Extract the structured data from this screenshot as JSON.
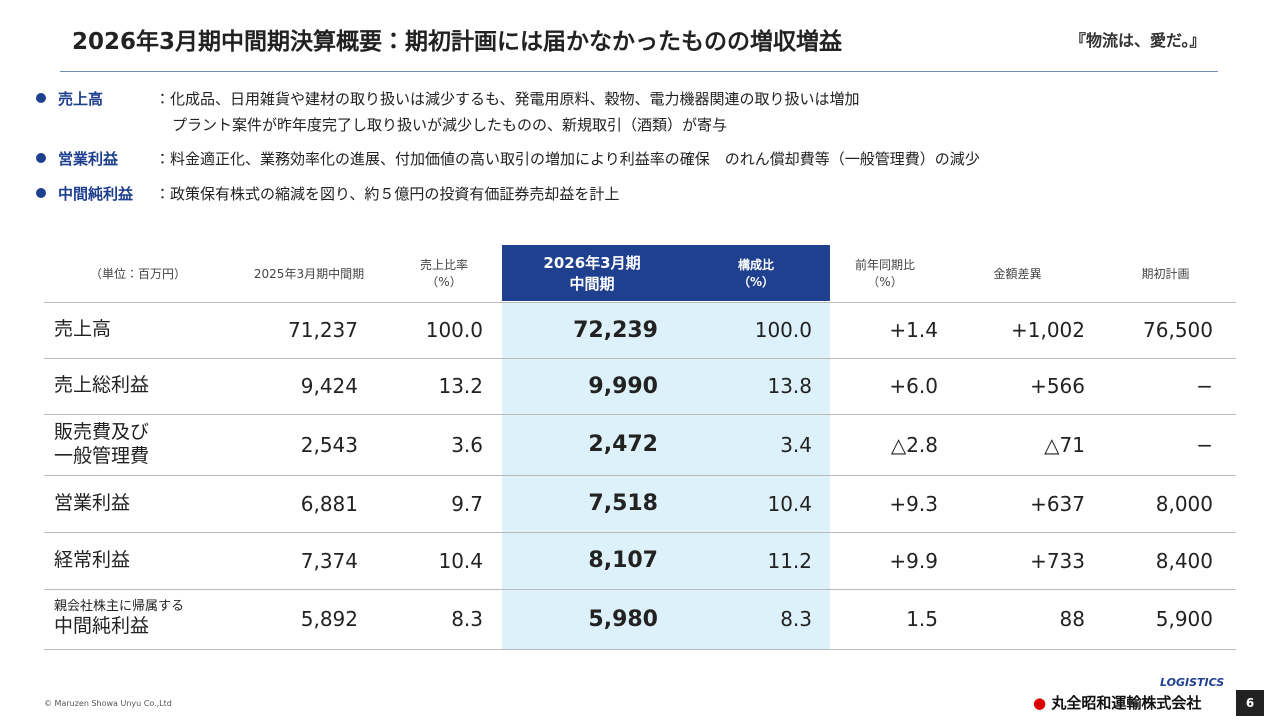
{
  "header": {
    "title": "2026年3月期中間期決算概要：期初計画には届かなかったものの増収増益",
    "slogan": "『物流は、愛だ。』"
  },
  "bullets": [
    {
      "label": "売上高",
      "lines": [
        "：化成品、日用雑貨や建材の取り扱いは減少するも、発電用原料、穀物、電力機器関連の取り扱いは増加",
        "プラント案件が昨年度完了し取り扱いが減少したものの、新規取引（酒類）が寄与"
      ]
    },
    {
      "label": "営業利益",
      "lines": [
        "：料金適正化、業務効率化の進展、付加価値の高い取引の増加により利益率の確保　のれん償却費等（一般管理費）の減少"
      ]
    },
    {
      "label": "中間純利益",
      "lines": [
        "：政策保有株式の縮減を図り、約５億円の投資有価証券売却益を計上"
      ]
    }
  ],
  "table": {
    "columns": [
      [
        "（単位：百万円）"
      ],
      [
        "2025年3月期中間期"
      ],
      [
        "売上比率",
        "（%）"
      ],
      [
        "2026年3月期",
        "中間期"
      ],
      [
        "構成比",
        "（%）"
      ],
      [
        "前年同期比",
        "（%）"
      ],
      [
        "金額差異"
      ],
      [
        "期初計画"
      ]
    ],
    "rows": [
      {
        "label": [
          "売上高"
        ],
        "cells": [
          "71,237",
          "100.0",
          "72,239",
          "100.0",
          "+1.4",
          "+1,002",
          "76,500"
        ]
      },
      {
        "label": [
          "売上総利益"
        ],
        "cells": [
          "9,424",
          "13.2",
          "9,990",
          "13.8",
          "+6.0",
          "+566",
          "−"
        ]
      },
      {
        "label": [
          "販売費及び",
          "一般管理費"
        ],
        "cells": [
          "2,543",
          "3.6",
          "2,472",
          "3.4",
          "△2.8",
          "△71",
          "−"
        ]
      },
      {
        "label": [
          "営業利益"
        ],
        "cells": [
          "6,881",
          "9.7",
          "7,518",
          "10.4",
          "+9.3",
          "+637",
          "8,000"
        ]
      },
      {
        "label": [
          "経常利益"
        ],
        "cells": [
          "7,374",
          "10.4",
          "8,107",
          "11.2",
          "+9.9",
          "+733",
          "8,400"
        ]
      },
      {
        "label": [
          "親会社株主に帰属する",
          "中間純利益"
        ],
        "cells": [
          "5,892",
          "8.3",
          "5,980",
          "8.3",
          "1.5",
          "88",
          "5,900"
        ]
      }
    ]
  },
  "footer": {
    "copyright": "© Maruzen Showa Unyu Co.,Ltd",
    "logo": "LOGISTICS",
    "company": "丸全昭和運輸株式会社",
    "page": "6"
  }
}
